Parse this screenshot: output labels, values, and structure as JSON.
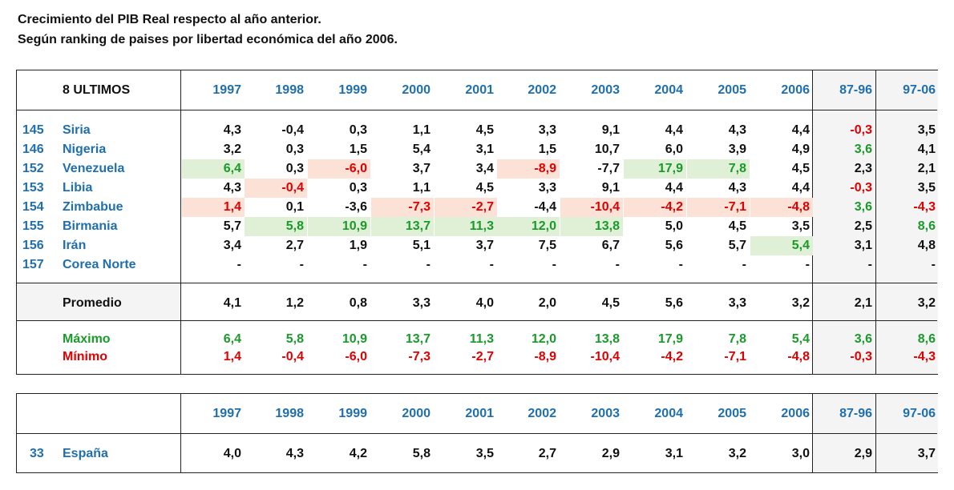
{
  "title_line1": "Crecimiento del PIB Real respecto al año anterior.",
  "title_line2": "Según ranking de paises por libertad económica del año 2006.",
  "colors": {
    "header_blue": "#1f6faf",
    "negative_red": "#e00000",
    "max_green": "#1a9a2a",
    "highlight_green": "#dff0d6",
    "highlight_red": "#fbe1d6",
    "shade_grey": "#f4f4f4"
  },
  "group_label": "8 ULTIMOS",
  "columns": [
    "1997",
    "1998",
    "1999",
    "2000",
    "2001",
    "2002",
    "2003",
    "2004",
    "2005",
    "2006",
    "87-96",
    "97-06"
  ],
  "rows": [
    {
      "rank": "145",
      "country": "Siria",
      "values": [
        "4,3",
        "-0,4",
        "0,3",
        "1,1",
        "4,5",
        "3,3",
        "9,1",
        "4,4",
        "4,3",
        "4,4",
        "-0,3",
        "3,5"
      ]
    },
    {
      "rank": "146",
      "country": "Nigeria",
      "values": [
        "3,2",
        "0,3",
        "1,5",
        "5,4",
        "3,1",
        "1,5",
        "10,7",
        "6,0",
        "3,9",
        "4,9",
        "3,6",
        "4,1"
      ]
    },
    {
      "rank": "152",
      "country": "Venezuela",
      "values": [
        "6,4",
        "0,3",
        "-6,0",
        "3,7",
        "3,4",
        "-8,9",
        "-7,7",
        "17,9",
        "7,8",
        "4,5",
        "2,3",
        "2,1"
      ]
    },
    {
      "rank": "153",
      "country": "Libia",
      "values": [
        "4,3",
        "-0,4",
        "0,3",
        "1,1",
        "4,5",
        "3,3",
        "9,1",
        "4,4",
        "4,3",
        "4,4",
        "-0,3",
        "3,5"
      ]
    },
    {
      "rank": "154",
      "country": "Zimbabue",
      "values": [
        "1,4",
        "0,1",
        "-3,6",
        "-7,3",
        "-2,7",
        "-4,4",
        "-10,4",
        "-4,2",
        "-7,1",
        "-4,8",
        "3,6",
        "-4,3"
      ]
    },
    {
      "rank": "155",
      "country": "Birmania",
      "values": [
        "5,7",
        "5,8",
        "10,9",
        "13,7",
        "11,3",
        "12,0",
        "13,8",
        "5,0",
        "4,5",
        "3,5",
        "2,5",
        "8,6"
      ]
    },
    {
      "rank": "156",
      "country": "Irán",
      "values": [
        "3,4",
        "2,7",
        "1,9",
        "5,1",
        "3,7",
        "7,5",
        "6,7",
        "5,6",
        "5,7",
        "5,4",
        "3,1",
        "4,8"
      ]
    },
    {
      "rank": "157",
      "country": "Corea Norte",
      "values": [
        "-",
        "-",
        "-",
        "-",
        "-",
        "-",
        "-",
        "-",
        "-",
        "-",
        "-",
        "-"
      ]
    }
  ],
  "promedio": {
    "label": "Promedio",
    "values": [
      "4,1",
      "1,2",
      "0,8",
      "3,3",
      "4,0",
      "2,0",
      "4,5",
      "5,6",
      "3,3",
      "3,2",
      "2,1",
      "3,2"
    ]
  },
  "maximo": {
    "label": "Máximo",
    "values": [
      "6,4",
      "5,8",
      "10,9",
      "13,7",
      "11,3",
      "12,0",
      "13,8",
      "17,9",
      "7,8",
      "5,4",
      "3,6",
      "8,6"
    ]
  },
  "minimo": {
    "label": "Mínimo",
    "values": [
      "1,4",
      "-0,4",
      "-6,0",
      "-7,3",
      "-2,7",
      "-8,9",
      "-10,4",
      "-4,2",
      "-7,1",
      "-4,8",
      "-0,3",
      "-4,3"
    ]
  },
  "spain": {
    "rank": "33",
    "country": "España",
    "values": [
      "4,0",
      "4,3",
      "4,2",
      "5,8",
      "3,5",
      "2,7",
      "2,9",
      "3,1",
      "3,2",
      "3,0",
      "2,9",
      "3,7"
    ]
  },
  "highlights": [
    {
      "row": 2,
      "col": 0,
      "type": "max"
    },
    {
      "row": 2,
      "col": 2,
      "type": "min"
    },
    {
      "row": 2,
      "col": 5,
      "type": "min"
    },
    {
      "row": 2,
      "col": 7,
      "type": "max"
    },
    {
      "row": 2,
      "col": 8,
      "type": "max"
    },
    {
      "row": 3,
      "col": 1,
      "type": "min"
    },
    {
      "row": 4,
      "col": 0,
      "type": "min"
    },
    {
      "row": 4,
      "col": 3,
      "type": "min"
    },
    {
      "row": 4,
      "col": 4,
      "type": "min"
    },
    {
      "row": 4,
      "col": 6,
      "type": "min"
    },
    {
      "row": 4,
      "col": 7,
      "type": "min"
    },
    {
      "row": 4,
      "col": 8,
      "type": "min"
    },
    {
      "row": 4,
      "col": 9,
      "type": "min"
    },
    {
      "row": 5,
      "col": 1,
      "type": "max"
    },
    {
      "row": 5,
      "col": 2,
      "type": "max"
    },
    {
      "row": 5,
      "col": 3,
      "type": "max"
    },
    {
      "row": 5,
      "col": 4,
      "type": "max"
    },
    {
      "row": 5,
      "col": 5,
      "type": "max"
    },
    {
      "row": 5,
      "col": 6,
      "type": "max"
    },
    {
      "row": 6,
      "col": 9,
      "type": "max"
    }
  ]
}
